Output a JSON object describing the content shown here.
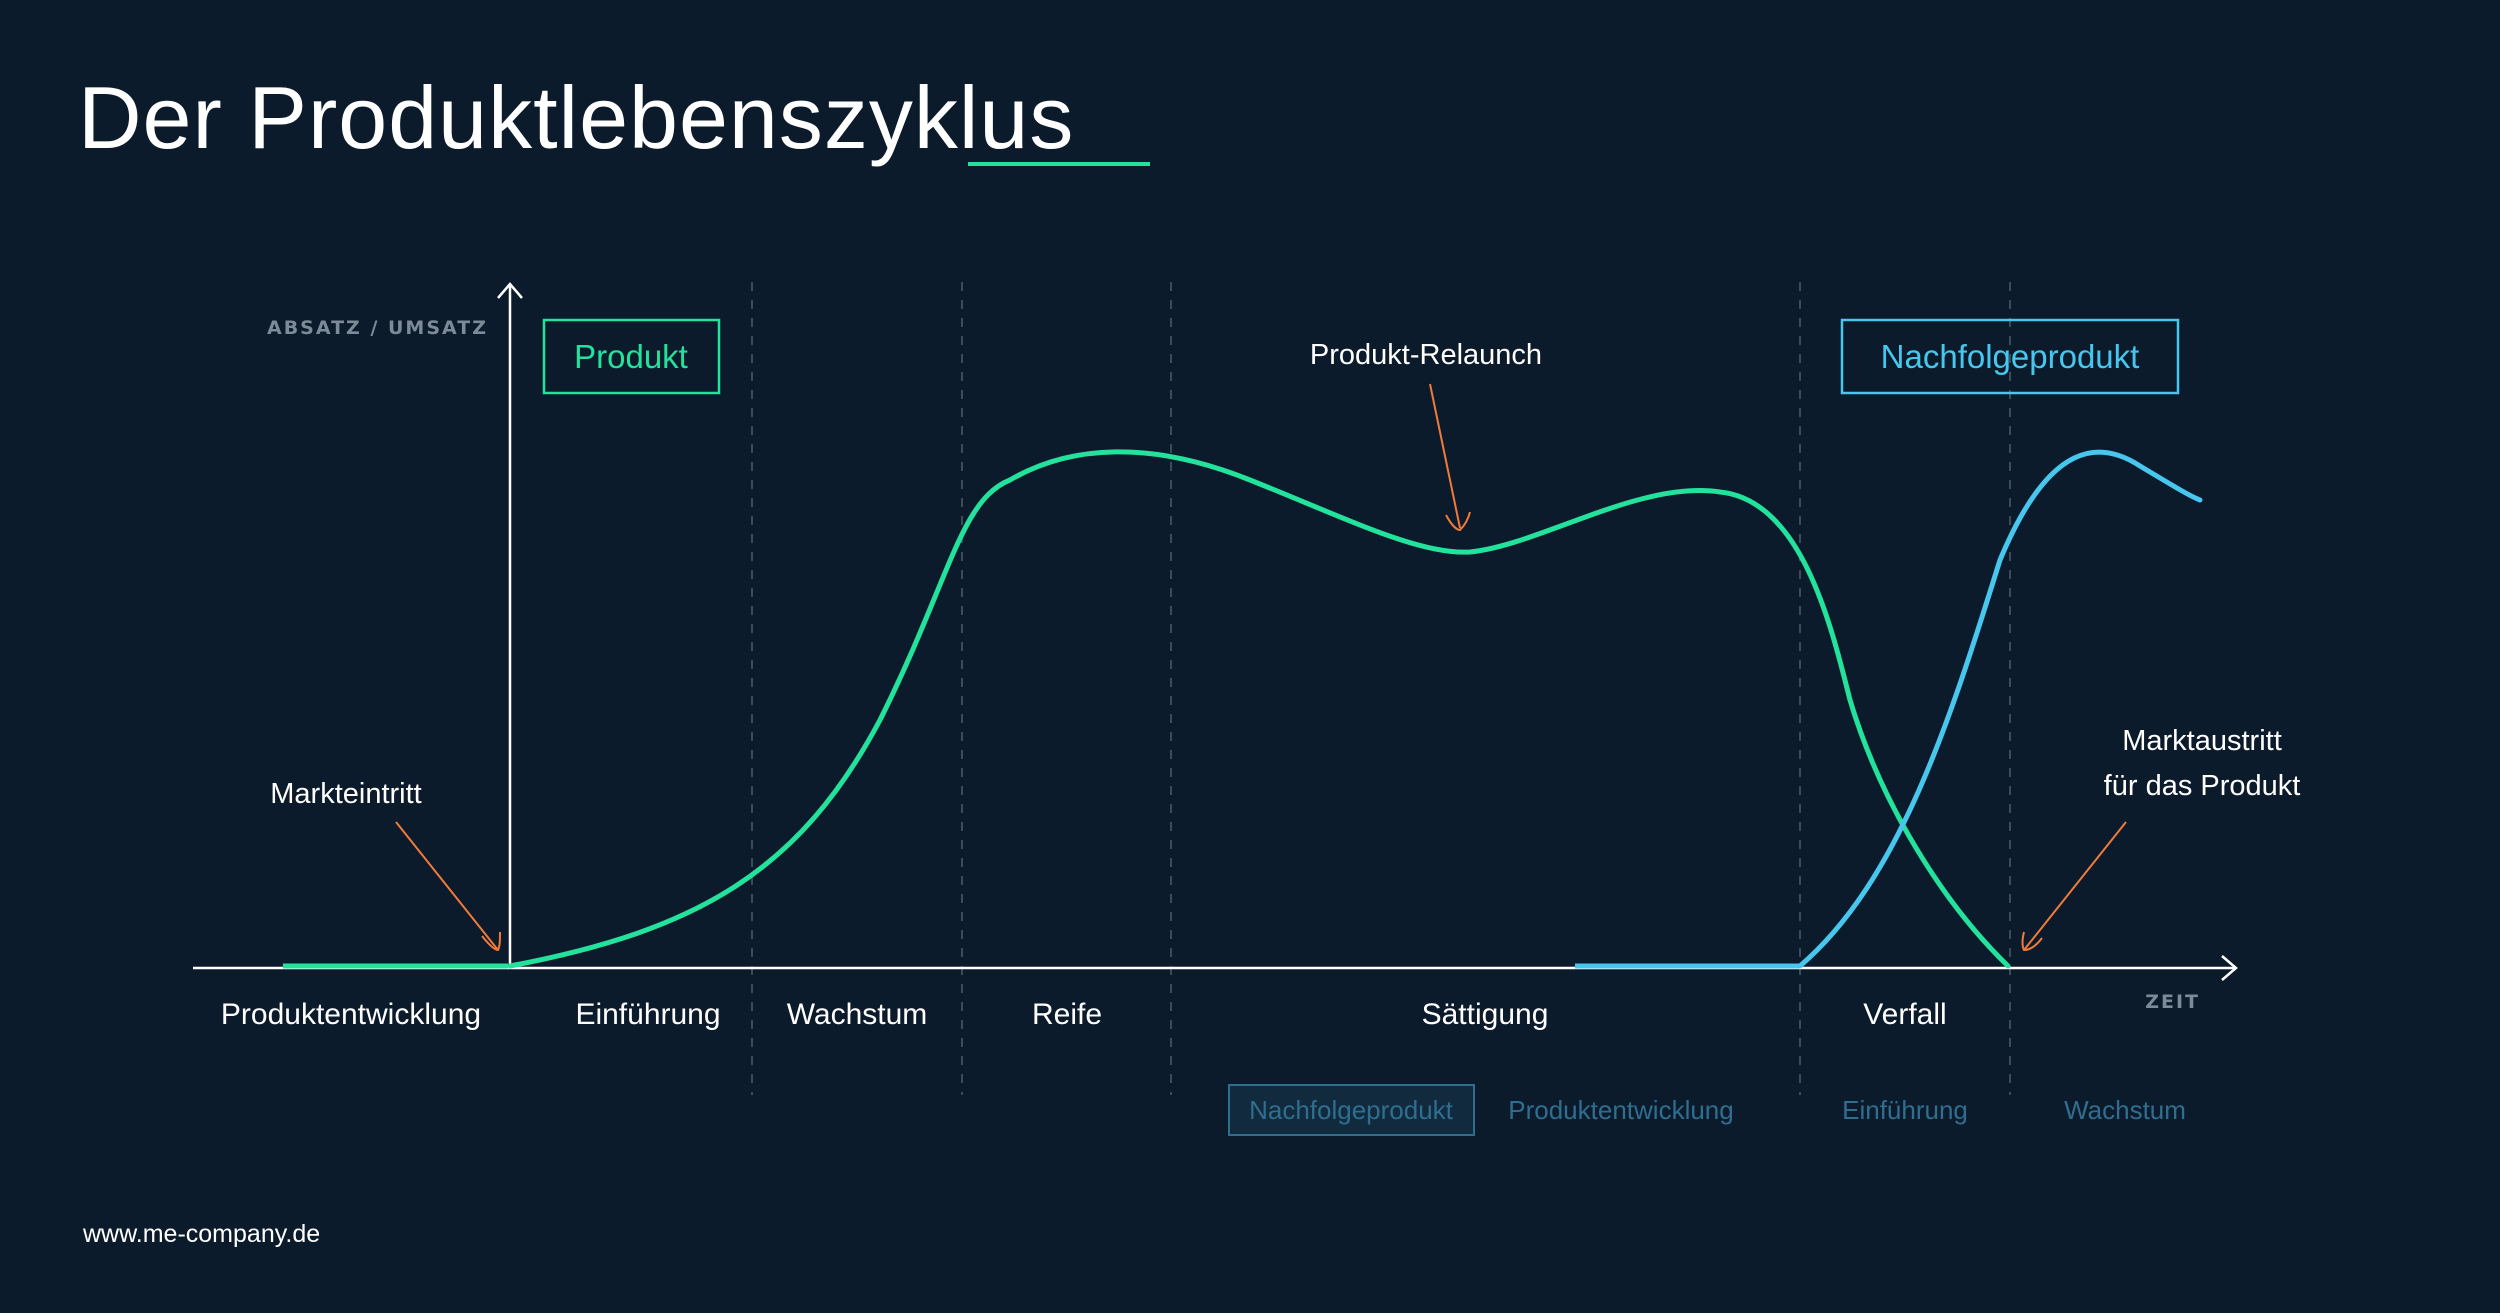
{
  "title": "Der Produktlebenszyklus",
  "axes": {
    "y_label": "ABSATZ / UMSATZ",
    "x_label": "ZEIT"
  },
  "boxes": {
    "product": "Produkt",
    "successor": "Nachfolgeprodukt"
  },
  "annotations": {
    "market_entry": "Markteintritt",
    "relaunch": "Produkt-Relaunch",
    "market_exit_line1": "Marktaustritt",
    "market_exit_line2": "für das Produkt"
  },
  "phases": [
    "Produktentwicklung",
    "Einführung",
    "Wachstum",
    "Reife",
    "Sättigung",
    "Verfall"
  ],
  "successor_phases": {
    "badge": "Nachfolgeprodukt",
    "items": [
      "Produktentwicklung",
      "Einführung",
      "Wachstum"
    ]
  },
  "footer": "www.me-company.de",
  "colors": {
    "background": "#0c1b2b",
    "product_curve": "#23e29c",
    "successor_curve": "#47c6ee",
    "arrow": "#f07a3a",
    "divider": "#3c4b5a"
  }
}
